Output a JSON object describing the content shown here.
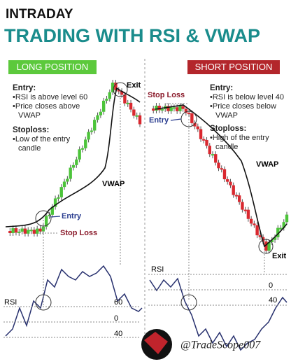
{
  "header": {
    "kicker": "INTRADAY",
    "title": "TRADING WITH RSI & VWAP"
  },
  "long": {
    "badge": "LONG POSITION",
    "entry_heading": "Entry:",
    "entry_rules": [
      "RSI is above level 60",
      "Price closes above VWAP"
    ],
    "stoploss_heading": "Stoploss:",
    "stoploss_rules": [
      "Low of the entry candle"
    ],
    "labels": {
      "exit": "Exit",
      "vwap": "VWAP",
      "entry": "Entry",
      "stop_loss": "Stop Loss",
      "rsi": "RSI",
      "level_60": "60",
      "level_0": "0",
      "level_40": "40"
    }
  },
  "short": {
    "badge": "SHORT POSITION",
    "entry_heading": "Entry:",
    "entry_rules": [
      "RSI is below level 40",
      "Price closes below VWAP"
    ],
    "stoploss_heading": "Stoploss:",
    "stoploss_rules": [
      "High of the entry candle"
    ],
    "labels": {
      "stop_loss": "Stop Loss",
      "entry": "Entry",
      "vwap": "VWAP",
      "exit": "Exit",
      "rsi": "RSI",
      "level_0": "0",
      "level_40": "40"
    }
  },
  "watermark": "@TradeScope007"
}
